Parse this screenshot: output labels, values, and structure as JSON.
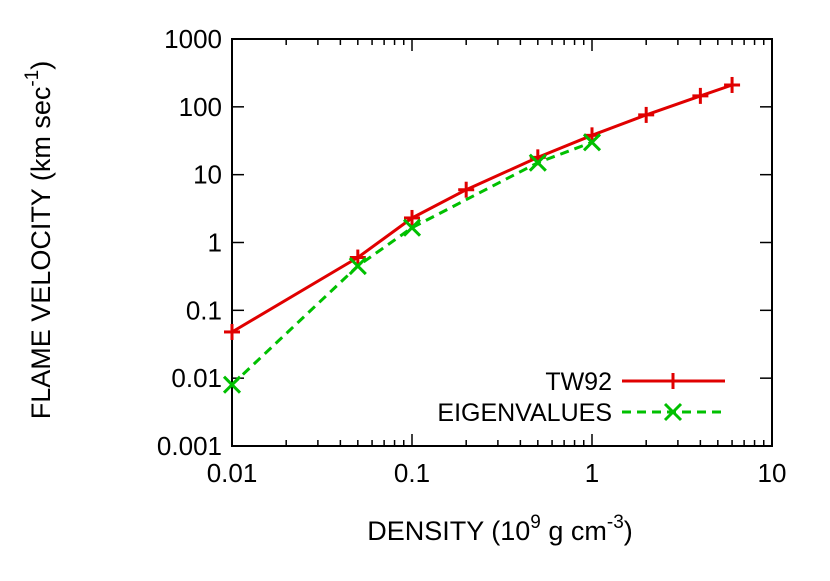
{
  "chart_data": {
    "type": "line",
    "xlabel": "DENSITY (10",
    "xlabel_sup": "9",
    "xlabel_mid": " g cm",
    "xlabel_sup2": "-3",
    "xlabel_end": ")",
    "ylabel": "FLAME VELOCITY (km sec",
    "ylabel_sup": "-1",
    "ylabel_end": ")",
    "xscale": "log",
    "yscale": "log",
    "xlim": [
      0.01,
      10
    ],
    "ylim": [
      0.001,
      1000
    ],
    "x_ticks": [
      0.01,
      0.1,
      1,
      10
    ],
    "x_tick_labels": [
      "0.01",
      "0.1",
      "1",
      "10"
    ],
    "y_ticks": [
      0.001,
      0.01,
      0.1,
      1,
      10,
      100,
      1000
    ],
    "y_tick_labels": [
      "0.001",
      "0.01",
      "0.1",
      "1",
      "10",
      "100",
      "1000"
    ],
    "grid": false,
    "legend": "bottom-right",
    "series": [
      {
        "name": "TW92",
        "color": "#e00000",
        "marker": "plus",
        "dash": "solid",
        "x": [
          0.01,
          0.05,
          0.1,
          0.2,
          0.5,
          1,
          2,
          4,
          6
        ],
        "y": [
          0.048,
          0.6,
          2.3,
          6.0,
          18.0,
          38.0,
          76.0,
          145.0,
          210.0
        ]
      },
      {
        "name": "EIGENVALUES",
        "color": "#00c000",
        "marker": "x",
        "dash": "dashed",
        "x": [
          0.01,
          0.05,
          0.1,
          0.5,
          1
        ],
        "y": [
          0.008,
          0.45,
          1.65,
          15.0,
          30.0
        ]
      }
    ]
  }
}
